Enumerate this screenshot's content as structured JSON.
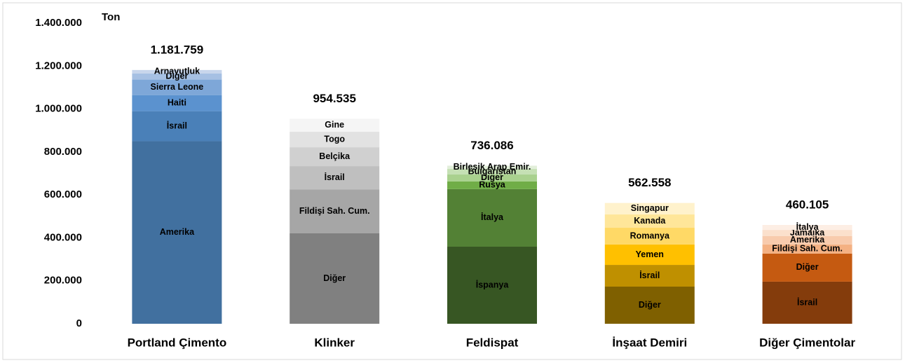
{
  "chart_data": {
    "type": "bar",
    "stacked": true,
    "ylabel": "Ton",
    "categories": [
      "Portland Çimento",
      "Klinker",
      "Feldispat",
      "İnşaat Demiri",
      "Diğer Çimentolar"
    ],
    "stacks": [
      {
        "total": 1181759,
        "total_label": "1.181.759",
        "segments": [
          {
            "name": "Amerika",
            "value": 850000,
            "color": "#41709f"
          },
          {
            "name": "İsrail",
            "value": 140000,
            "color": "#4a80b8"
          },
          {
            "name": "Haiti",
            "value": 75000,
            "color": "#5b92cf"
          },
          {
            "name": "Sierra Leone",
            "value": 72000,
            "color": "#7ea7d8"
          },
          {
            "name": "Diğer",
            "value": 29000,
            "color": "#a6c0e3"
          },
          {
            "name": "Arnavutluk",
            "value": 15759,
            "color": "#c8d6ec"
          }
        ]
      },
      {
        "total": 954535,
        "total_label": "954.535",
        "segments": [
          {
            "name": "Diğer",
            "value": 421000,
            "color": "#808080"
          },
          {
            "name": "Fildişi Sah. Cum.",
            "value": 205000,
            "color": "#a6a6a6"
          },
          {
            "name": "İsrail",
            "value": 108000,
            "color": "#bfbfbf"
          },
          {
            "name": "Belçika",
            "value": 88000,
            "color": "#d0d0d0"
          },
          {
            "name": "Togo",
            "value": 72000,
            "color": "#e2e2e2"
          },
          {
            "name": "Gine",
            "value": 60535,
            "color": "#f5f5f5"
          }
        ]
      },
      {
        "total": 736086,
        "total_label": "736.086",
        "segments": [
          {
            "name": "İspanya",
            "value": 359000,
            "color": "#375623"
          },
          {
            "name": "İtalya",
            "value": 268000,
            "color": "#538135"
          },
          {
            "name": "Rusya",
            "value": 36000,
            "color": "#70ad47"
          },
          {
            "name": "Diğer",
            "value": 32000,
            "color": "#a9d18e"
          },
          {
            "name": "Bulgaristan",
            "value": 26000,
            "color": "#c5e0b4"
          },
          {
            "name": "Birleşik Arap Emir.",
            "value": 15086,
            "color": "#e2efda"
          }
        ]
      },
      {
        "total": 562558,
        "total_label": "562.558",
        "segments": [
          {
            "name": "Diğer",
            "value": 173000,
            "color": "#7f6000"
          },
          {
            "name": "İsrail",
            "value": 101000,
            "color": "#bf9000"
          },
          {
            "name": "Yemen",
            "value": 95000,
            "color": "#ffc000"
          },
          {
            "name": "Romanya",
            "value": 78000,
            "color": "#ffd966"
          },
          {
            "name": "Kanada",
            "value": 62000,
            "color": "#ffe699"
          },
          {
            "name": "Singapur",
            "value": 53558,
            "color": "#fff2cc"
          }
        ]
      },
      {
        "total": 460105,
        "total_label": "460.105",
        "segments": [
          {
            "name": "İsrail",
            "value": 196000,
            "color": "#843c0c"
          },
          {
            "name": "Diğer",
            "value": 131000,
            "color": "#c55a11"
          },
          {
            "name": "Fildişi Sah. Cum.",
            "value": 42000,
            "color": "#f4b183"
          },
          {
            "name": "Amerika",
            "value": 39000,
            "color": "#f8cbad"
          },
          {
            "name": "Jamaika",
            "value": 29000,
            "color": "#fbe0cc"
          },
          {
            "name": "İtalya",
            "value": 23105,
            "color": "#fdeee4"
          }
        ]
      }
    ],
    "ylim": [
      0,
      1400000
    ],
    "yticks": [
      0,
      {
        "value": 200000,
        "label": "200.000"
      },
      {
        "value": 400000,
        "label": "400.000"
      },
      {
        "value": 600000,
        "label": "600.000"
      },
      {
        "value": 800000,
        "label": "800.000"
      },
      {
        "value": 1000000,
        "label": "1.000.000"
      },
      {
        "value": 1200000,
        "label": "1.200.000"
      },
      {
        "value": 1400000,
        "label": "1.400.000"
      }
    ],
    "grid": false
  }
}
